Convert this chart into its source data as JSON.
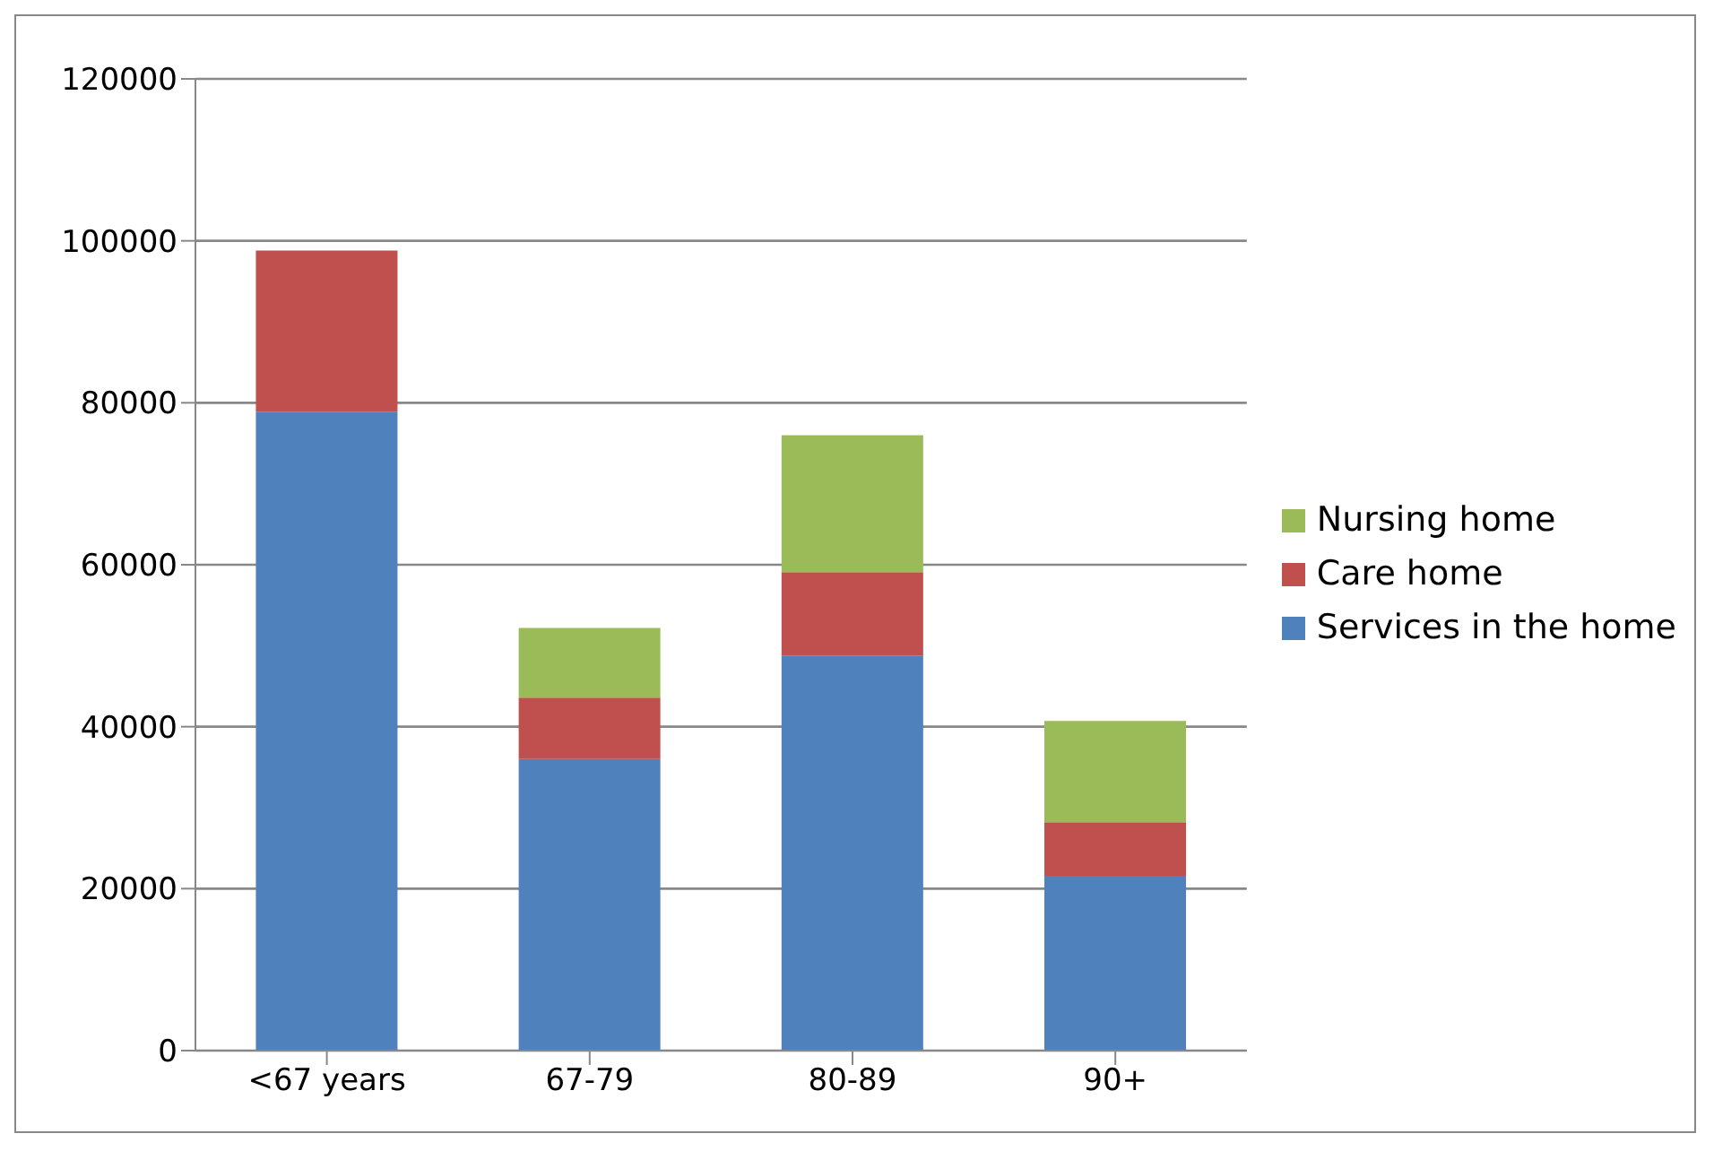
{
  "chart_data": {
    "type": "bar",
    "stacked": true,
    "categories": [
      "<67 years",
      "67-79",
      "80-89",
      "90+"
    ],
    "series": [
      {
        "name": "Services in the home",
        "color": "#4f81bd",
        "values": [
          78900,
          36000,
          48800,
          21600
        ]
      },
      {
        "name": "Care home",
        "color": "#c0504d",
        "values": [
          19900,
          7600,
          10300,
          6600
        ]
      },
      {
        "name": "Nursing home",
        "color": "#9bbb59",
        "values": [
          0,
          8600,
          16900,
          12500
        ]
      }
    ],
    "ylim": [
      0,
      120000
    ],
    "yticks": [
      0,
      20000,
      40000,
      60000,
      80000,
      100000,
      120000
    ],
    "grid": "y",
    "legend": "right"
  }
}
